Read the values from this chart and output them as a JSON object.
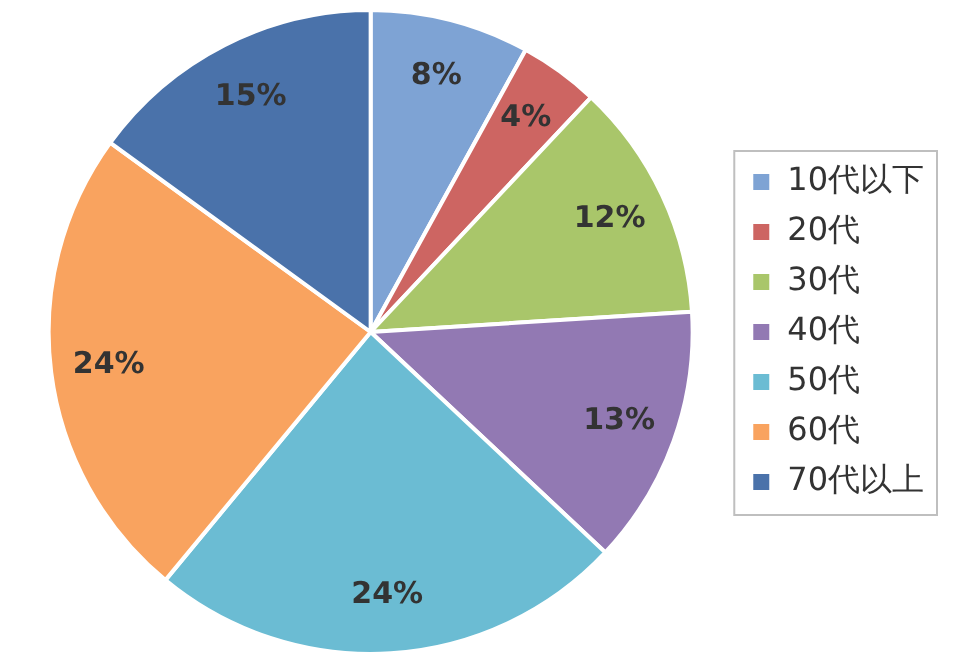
{
  "chart_data": {
    "type": "pie",
    "categories": [
      "10代以下",
      "20代",
      "30代",
      "40代",
      "50代",
      "60代",
      "70代以上"
    ],
    "values": [
      8,
      4,
      12,
      13,
      24,
      24,
      15
    ],
    "colors": [
      "#7ea3d4",
      "#cd6562",
      "#a9c66a",
      "#9279b3",
      "#6bbcd3",
      "#f9a35f",
      "#4a72aa"
    ],
    "value_labels": [
      "8%",
      "4%",
      "12%",
      "13%",
      "24%",
      "24%",
      "15%"
    ],
    "legend": "right"
  }
}
